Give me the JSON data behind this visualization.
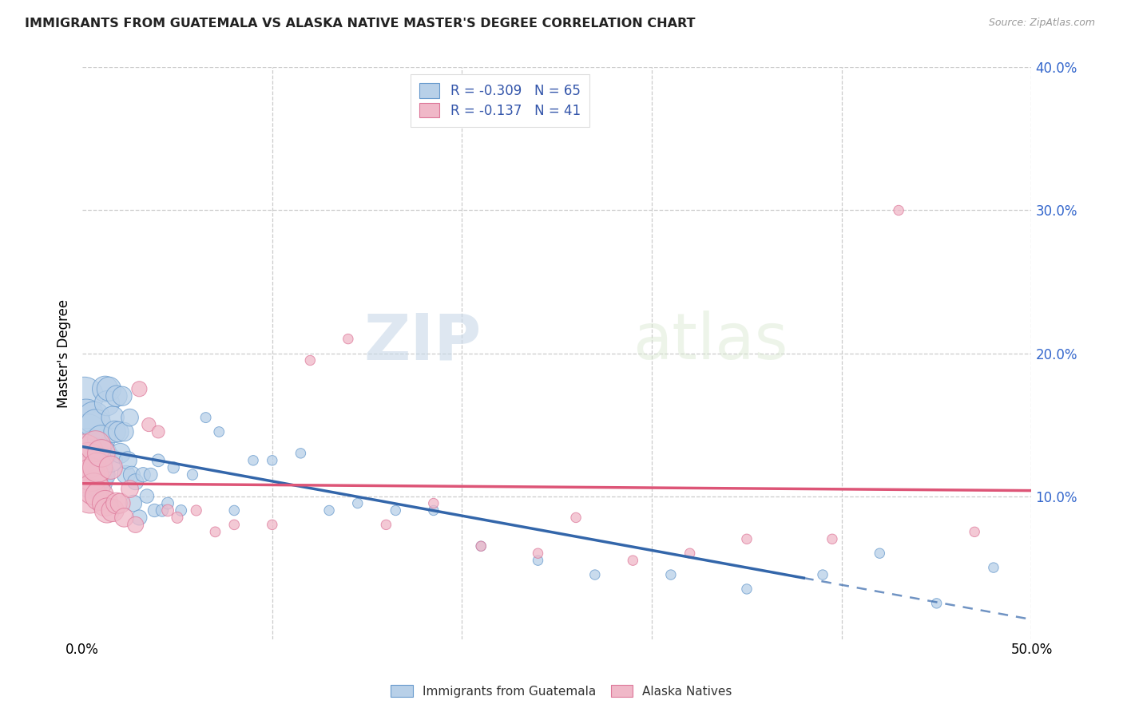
{
  "title": "IMMIGRANTS FROM GUATEMALA VS ALASKA NATIVE MASTER'S DEGREE CORRELATION CHART",
  "source": "Source: ZipAtlas.com",
  "ylabel": "Master's Degree",
  "xlim": [
    0,
    0.5
  ],
  "ylim": [
    0,
    0.4
  ],
  "blue_R": -0.309,
  "blue_N": 65,
  "pink_R": -0.137,
  "pink_N": 41,
  "blue_color": "#b8d0e8",
  "pink_color": "#f0b8c8",
  "blue_edge_color": "#6699cc",
  "pink_edge_color": "#dd7799",
  "blue_line_color": "#3366aa",
  "pink_line_color": "#dd5577",
  "legend_blue_label": "Immigrants from Guatemala",
  "legend_pink_label": "Alaska Natives",
  "watermark_zip": "ZIP",
  "watermark_atlas": "atlas",
  "blue_scatter_x": [
    0.001,
    0.002,
    0.003,
    0.003,
    0.004,
    0.004,
    0.005,
    0.005,
    0.006,
    0.006,
    0.007,
    0.007,
    0.008,
    0.008,
    0.009,
    0.01,
    0.01,
    0.011,
    0.012,
    0.013,
    0.014,
    0.015,
    0.016,
    0.017,
    0.018,
    0.019,
    0.02,
    0.021,
    0.022,
    0.023,
    0.024,
    0.025,
    0.026,
    0.027,
    0.028,
    0.03,
    0.032,
    0.034,
    0.036,
    0.038,
    0.04,
    0.042,
    0.045,
    0.048,
    0.052,
    0.058,
    0.065,
    0.072,
    0.08,
    0.09,
    0.1,
    0.115,
    0.13,
    0.145,
    0.165,
    0.185,
    0.21,
    0.24,
    0.27,
    0.31,
    0.35,
    0.39,
    0.42,
    0.45,
    0.48
  ],
  "blue_scatter_y": [
    0.17,
    0.155,
    0.145,
    0.135,
    0.13,
    0.115,
    0.125,
    0.11,
    0.155,
    0.135,
    0.15,
    0.12,
    0.13,
    0.11,
    0.115,
    0.14,
    0.115,
    0.13,
    0.175,
    0.165,
    0.175,
    0.125,
    0.155,
    0.145,
    0.17,
    0.145,
    0.13,
    0.17,
    0.145,
    0.115,
    0.125,
    0.155,
    0.115,
    0.095,
    0.11,
    0.085,
    0.115,
    0.1,
    0.115,
    0.09,
    0.125,
    0.09,
    0.095,
    0.12,
    0.09,
    0.115,
    0.155,
    0.145,
    0.09,
    0.125,
    0.125,
    0.13,
    0.09,
    0.095,
    0.09,
    0.09,
    0.065,
    0.055,
    0.045,
    0.045,
    0.035,
    0.045,
    0.06,
    0.025,
    0.05
  ],
  "pink_scatter_x": [
    0.001,
    0.002,
    0.003,
    0.004,
    0.005,
    0.006,
    0.007,
    0.008,
    0.009,
    0.01,
    0.012,
    0.013,
    0.015,
    0.016,
    0.018,
    0.02,
    0.022,
    0.025,
    0.028,
    0.03,
    0.035,
    0.04,
    0.045,
    0.05,
    0.06,
    0.07,
    0.08,
    0.1,
    0.12,
    0.14,
    0.16,
    0.185,
    0.21,
    0.24,
    0.26,
    0.29,
    0.32,
    0.35,
    0.395,
    0.43,
    0.47
  ],
  "pink_scatter_y": [
    0.13,
    0.115,
    0.125,
    0.1,
    0.115,
    0.105,
    0.135,
    0.12,
    0.1,
    0.13,
    0.095,
    0.09,
    0.12,
    0.09,
    0.095,
    0.095,
    0.085,
    0.105,
    0.08,
    0.175,
    0.15,
    0.145,
    0.09,
    0.085,
    0.09,
    0.075,
    0.08,
    0.08,
    0.195,
    0.21,
    0.08,
    0.095,
    0.065,
    0.06,
    0.085,
    0.055,
    0.06,
    0.07,
    0.07,
    0.3,
    0.075
  ]
}
